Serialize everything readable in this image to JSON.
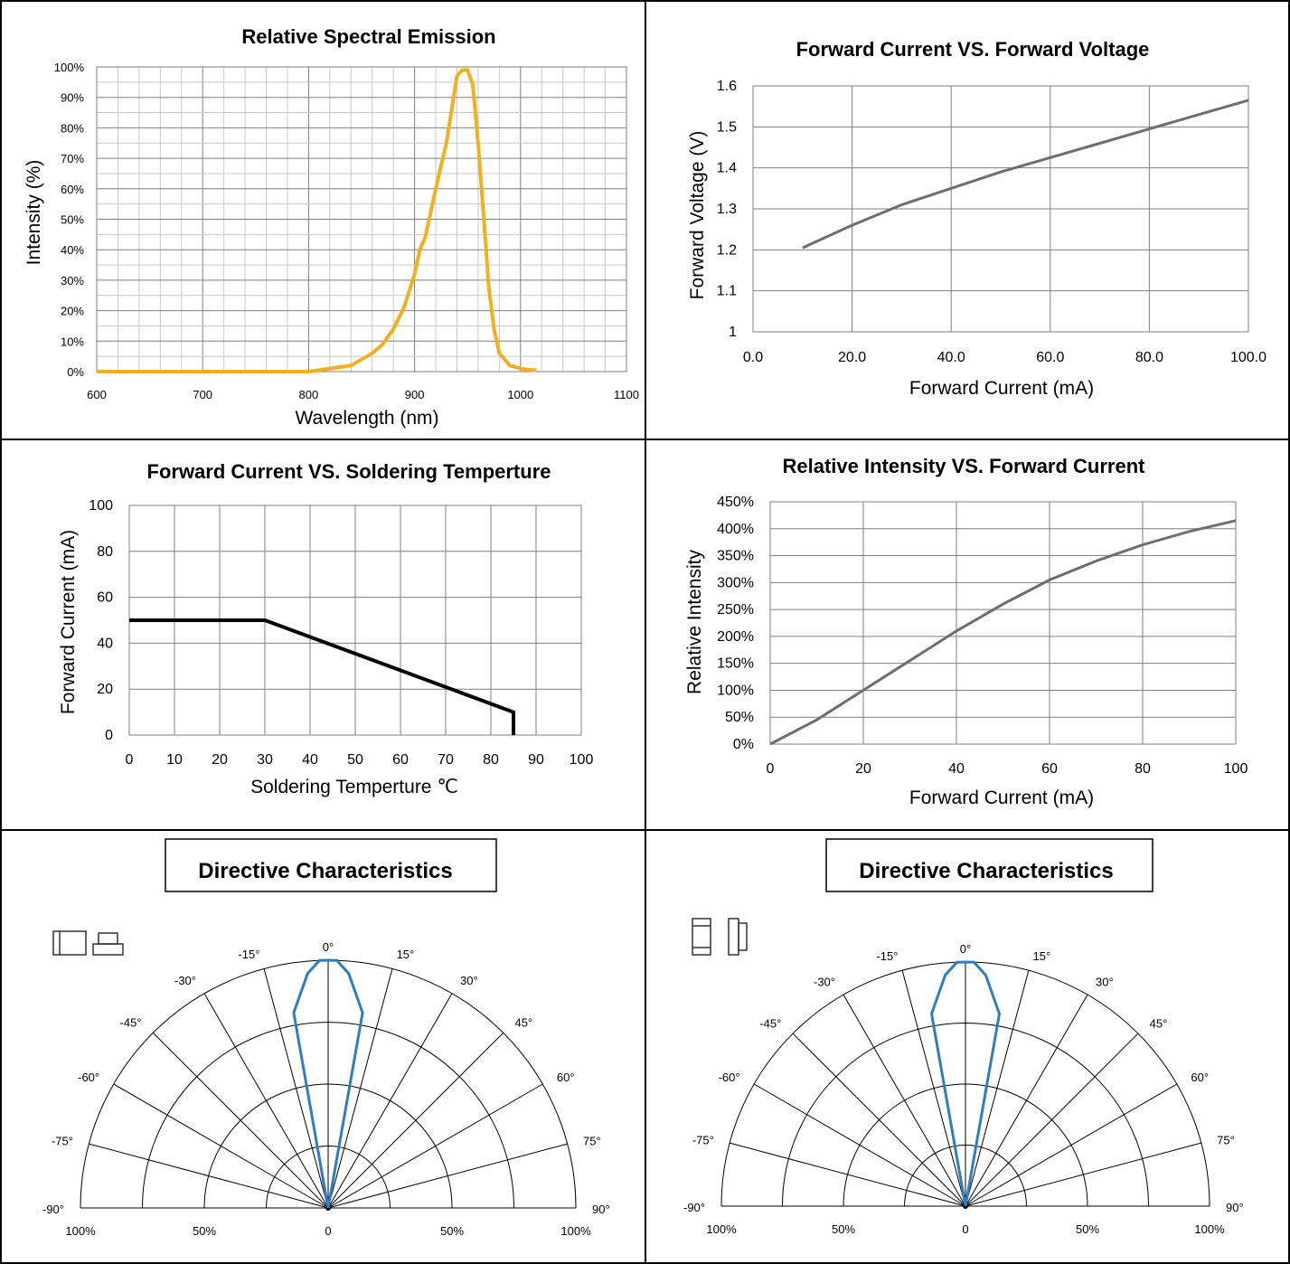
{
  "colors": {
    "spectral_line": "#F2B01E",
    "line_grey": "#6E6E6E",
    "line_black": "#000000",
    "polar_line": "#2E7DC0",
    "grid_light": "#C8C8C8",
    "grid_dark": "#7F7F7F"
  },
  "charts": {
    "spectral": {
      "title": "Relative Spectral Emission",
      "xlabel": "Wavelength (nm)",
      "ylabel": "Intensity (%)",
      "xticks": [
        "600",
        "700",
        "800",
        "900",
        "1000",
        "1100"
      ],
      "yticks": [
        "0%",
        "10%",
        "20%",
        "30%",
        "40%",
        "50%",
        "60%",
        "70%",
        "80%",
        "90%",
        "100%"
      ]
    },
    "iv": {
      "title": "Forward Current VS. Forward Voltage",
      "xlabel": "Forward Current (mA)",
      "ylabel": "Forward Voltage (V)",
      "xticks": [
        "0.0",
        "20.0",
        "40.0",
        "60.0",
        "80.0",
        "100.0"
      ],
      "yticks": [
        "1",
        "1.1",
        "1.2",
        "1.3",
        "1.4",
        "1.5",
        "1.6"
      ]
    },
    "derating": {
      "title": "Forward Current VS. Soldering Temperture",
      "xlabel": "Soldering Temperture ℃",
      "ylabel": "Forward Current (mA)",
      "xticks": [
        "0",
        "10",
        "20",
        "30",
        "40",
        "50",
        "60",
        "70",
        "80",
        "90",
        "100"
      ],
      "yticks": [
        "0",
        "20",
        "40",
        "60",
        "80",
        "100"
      ]
    },
    "intensity": {
      "title": "Relative Intensity VS. Forward Current",
      "xlabel": "Forward Current (mA)",
      "ylabel": "Relative Intensity",
      "xticks": [
        "0",
        "20",
        "40",
        "60",
        "80",
        "100"
      ],
      "yticks": [
        "0%",
        "50%",
        "100%",
        "150%",
        "200%",
        "250%",
        "300%",
        "350%",
        "400%",
        "450%"
      ]
    },
    "polar_left": {
      "title": "Directive Characteristics",
      "angle_labels": [
        "-90°",
        "-75°",
        "-60°",
        "-45°",
        "-30°",
        "-15°",
        "0°",
        "15°",
        "30°",
        "45°",
        "60°",
        "75°",
        "90°"
      ],
      "radial_labels": [
        "100%",
        "50%",
        "0",
        "50%",
        "100%"
      ]
    },
    "polar_right": {
      "title": "Directive Characteristics",
      "angle_labels": [
        "-90°",
        "-75°",
        "-60°",
        "-45°",
        "-30°",
        "-15°",
        "0°",
        "15°",
        "30°",
        "45°",
        "60°",
        "75°",
        "90°"
      ],
      "radial_labels": [
        "100%",
        "50%",
        "0",
        "50%",
        "100%"
      ]
    }
  },
  "chart_data": [
    {
      "type": "line",
      "title": "Relative Spectral Emission",
      "xlabel": "Wavelength (nm)",
      "ylabel": "Intensity (%)",
      "xlim": [
        600,
        1100
      ],
      "ylim": [
        0,
        100
      ],
      "grid": true,
      "series": [
        {
          "x": [
            600,
            700,
            800,
            820,
            840,
            860,
            870,
            880,
            890,
            900,
            905,
            910,
            920,
            930,
            940,
            945,
            950,
            955,
            960,
            965,
            970,
            975,
            980,
            990,
            1000,
            1010,
            1015
          ],
          "y": [
            0,
            0,
            0,
            1,
            2,
            6,
            9,
            14,
            21,
            32,
            40,
            44,
            60,
            75,
            97,
            99,
            99,
            94,
            75,
            52,
            28,
            14,
            6,
            2,
            1,
            0.5,
            0.5
          ]
        }
      ]
    },
    {
      "type": "line",
      "title": "Forward Current VS. Forward Voltage",
      "xlabel": "Forward Current (mA)",
      "ylabel": "Forward Voltage (V)",
      "xlim": [
        0,
        100
      ],
      "ylim": [
        1,
        1.6
      ],
      "grid": true,
      "series": [
        {
          "x": [
            10,
            20,
            30,
            40,
            50,
            60,
            70,
            80,
            90,
            100
          ],
          "y": [
            1.205,
            1.26,
            1.31,
            1.35,
            1.39,
            1.425,
            1.46,
            1.495,
            1.53,
            1.565
          ]
        }
      ]
    },
    {
      "type": "line",
      "title": "Forward Current VS. Soldering Temperture",
      "xlabel": "Soldering Temperture ℃",
      "ylabel": "Forward Current (mA)",
      "xlim": [
        0,
        100
      ],
      "ylim": [
        0,
        100
      ],
      "grid": true,
      "series": [
        {
          "x": [
            0,
            30,
            85,
            85
          ],
          "y": [
            50,
            50,
            10,
            0
          ]
        }
      ]
    },
    {
      "type": "line",
      "title": "Relative Intensity VS. Forward Current",
      "xlabel": "Forward Current (mA)",
      "ylabel": "Relative Intensity",
      "xlim": [
        0,
        100
      ],
      "ylim": [
        0,
        450
      ],
      "grid": true,
      "series": [
        {
          "x": [
            0,
            10,
            20,
            30,
            40,
            50,
            60,
            70,
            80,
            90,
            100
          ],
          "y": [
            0,
            45,
            100,
            155,
            210,
            260,
            305,
            340,
            370,
            395,
            415
          ]
        }
      ]
    },
    {
      "type": "polar",
      "title": "Directive Characteristics",
      "series": [
        {
          "angle": [
            -90,
            -15,
            -10,
            -5,
            -2,
            0,
            2,
            5,
            10,
            15,
            90
          ],
          "value": [
            0,
            0,
            0.8,
            0.95,
            1.0,
            1.0,
            1.0,
            0.95,
            0.8,
            0,
            0
          ]
        }
      ]
    },
    {
      "type": "polar",
      "title": "Directive Characteristics",
      "series": [
        {
          "angle": [
            -90,
            -15,
            -10,
            -5,
            -2,
            0,
            2,
            5,
            10,
            15,
            90
          ],
          "value": [
            0,
            0,
            0.8,
            0.95,
            1.0,
            1.0,
            1.0,
            0.95,
            0.8,
            0,
            0
          ]
        }
      ]
    }
  ]
}
